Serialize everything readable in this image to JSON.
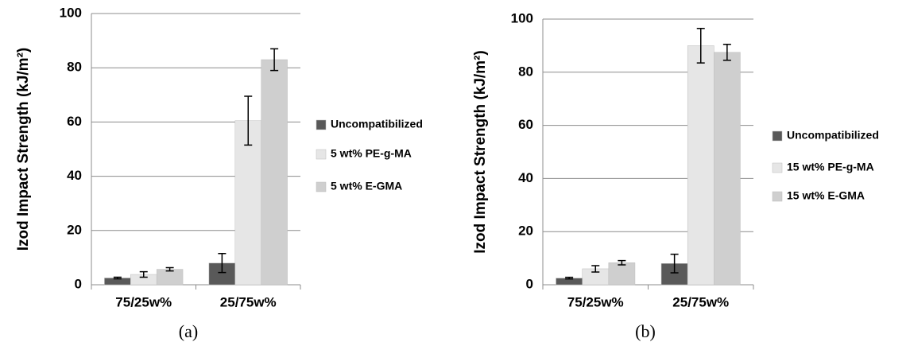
{
  "chart_data": [
    {
      "type": "bar",
      "ylabel": "Izod Impact Strength (kJ/m²)",
      "caption": "(a)",
      "categories": [
        "75/25w%",
        "25/75w%"
      ],
      "series": [
        {
          "name": "Uncompatibilized",
          "color": "#595959",
          "values": [
            2.5,
            8
          ],
          "errors": [
            0.3,
            3.5
          ]
        },
        {
          "name": "5 wt% PE-g-MA",
          "color": "#e6e6e6",
          "values": [
            3.8,
            60.5
          ],
          "errors": [
            1,
            9
          ]
        },
        {
          "name": "5 wt% E-GMA",
          "color": "#cfcfcf",
          "values": [
            5.7,
            83
          ],
          "errors": [
            0.6,
            4
          ]
        }
      ],
      "ylim": [
        0,
        100
      ],
      "yticks": [
        0,
        20,
        40,
        60,
        80,
        100
      ],
      "grid": true
    },
    {
      "type": "bar",
      "ylabel": "Izod Impact Strength (kJ/m²)",
      "caption": "(b)",
      "categories": [
        "75/25w%",
        "25/75w%"
      ],
      "series": [
        {
          "name": "Uncompatibilized",
          "color": "#595959",
          "values": [
            2.5,
            8
          ],
          "errors": [
            0.3,
            3.5
          ]
        },
        {
          "name": "15 wt% PE-g-MA",
          "color": "#e6e6e6",
          "values": [
            6,
            90
          ],
          "errors": [
            1.2,
            6.5
          ]
        },
        {
          "name": "15 wt% E-GMA",
          "color": "#cfcfcf",
          "values": [
            8.3,
            87.5
          ],
          "errors": [
            0.8,
            3
          ]
        }
      ],
      "ylim": [
        0,
        100
      ],
      "yticks": [
        0,
        20,
        40,
        60,
        80,
        100
      ],
      "grid": true
    }
  ]
}
